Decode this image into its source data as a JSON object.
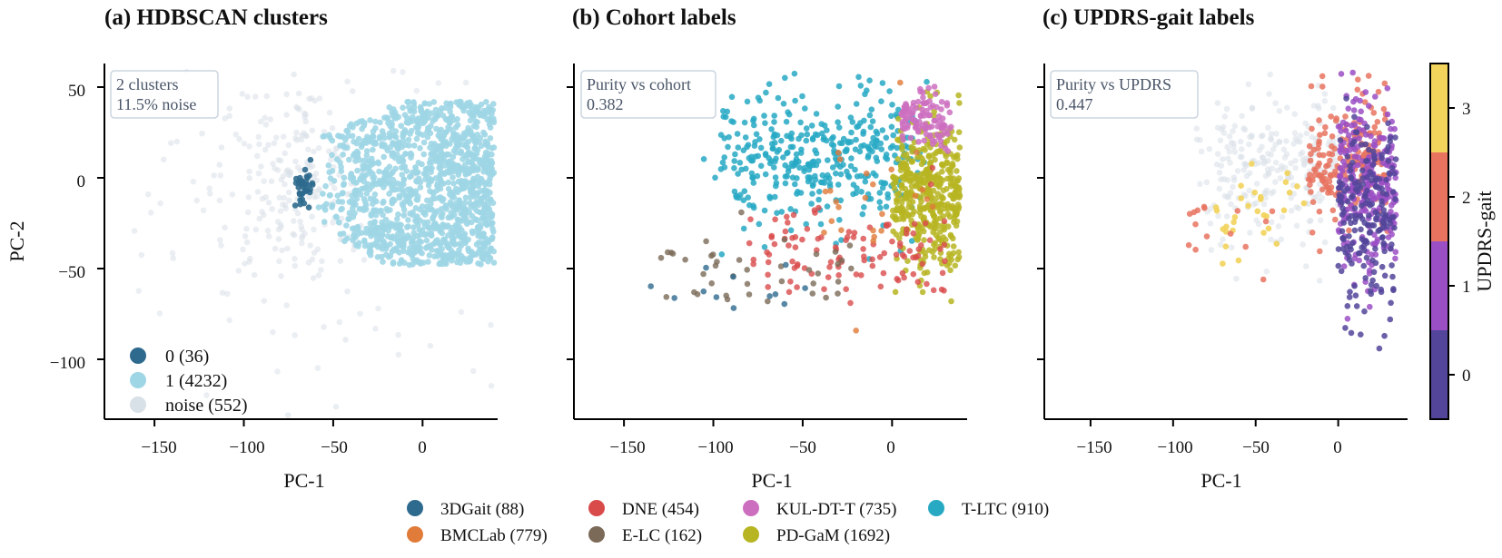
{
  "panels": [
    {
      "title": "(a) HDBSCAN clusters",
      "xlabel": "PC-1",
      "ylabel": "PC-2",
      "info": [
        "2 clusters",
        "11.5% noise"
      ]
    },
    {
      "title": "(b) Cohort labels",
      "xlabel": "PC-1",
      "ylabel": "",
      "info": [
        "Purity vs cohort",
        "0.382"
      ]
    },
    {
      "title": "(c) UPDRS-gait labels",
      "xlabel": "PC-1",
      "ylabel": "",
      "info": [
        "Purity vs UPDRS",
        "0.447"
      ]
    }
  ],
  "legend_a": [
    {
      "label": "0 (36)",
      "color": "#2e6a8e"
    },
    {
      "label": "1 (4232)",
      "color": "#9fd6e6"
    },
    {
      "label": "noise (552)",
      "color": "#d8e0e8"
    }
  ],
  "cohort_legend": [
    {
      "label": "3DGait (88)",
      "color": "#2e6a8e"
    },
    {
      "label": "BMCLab (779)",
      "color": "#e07b39"
    },
    {
      "label": "DNE (454)",
      "color": "#d94b4b"
    },
    {
      "label": "E-LC (162)",
      "color": "#7b6a58"
    },
    {
      "label": "KUL-DT-T (735)",
      "color": "#cc6fbf"
    },
    {
      "label": "PD-GaM (1692)",
      "color": "#b7b522"
    },
    {
      "label": "T-LTC (910)",
      "color": "#27a9c4"
    }
  ],
  "colorbar": {
    "label": "UPDRS-gait",
    "levels": [
      {
        "value": "0",
        "color": "#52459a"
      },
      {
        "value": "1",
        "color": "#9b4fc4"
      },
      {
        "value": "2",
        "color": "#e8735f"
      },
      {
        "value": "3",
        "color": "#f2d35b"
      }
    ]
  },
  "chart_data": [
    {
      "type": "scatter",
      "title": "(a) HDBSCAN clusters",
      "xlabel": "PC-1",
      "ylabel": "PC-2",
      "xlim": [
        -178,
        42
      ],
      "ylim": [
        -133,
        63
      ],
      "xticks": [
        "-150",
        "-100",
        "-50",
        "0"
      ],
      "yticks": [
        "50",
        "0",
        "-50",
        "-100"
      ],
      "legend_position": "lower-left",
      "series": [
        {
          "name": "0 (36)",
          "color": "#2e6a8e",
          "count": 36,
          "x_range": [
            -72,
            -60
          ],
          "y_range": [
            -15,
            8
          ]
        },
        {
          "name": "1 (4232)",
          "color": "#9fd6e6",
          "count": 4232,
          "x_range": [
            -62,
            40
          ],
          "y_range": [
            -50,
            45
          ]
        },
        {
          "name": "noise (552)",
          "color": "#d8e0e8",
          "count": 552,
          "x_range": [
            -178,
            40
          ],
          "y_range": [
            -130,
            60
          ]
        }
      ]
    },
    {
      "type": "scatter",
      "title": "(b) Cohort labels",
      "xlabel": "PC-1",
      "xlim": [
        -178,
        42
      ],
      "ylim": [
        -133,
        63
      ],
      "xticks": [
        "-150",
        "-100",
        "-50",
        "0"
      ],
      "series": [
        {
          "name": "3DGait (88)",
          "count": 88
        },
        {
          "name": "BMCLab (779)",
          "count": 779
        },
        {
          "name": "DNE (454)",
          "count": 454
        },
        {
          "name": "E-LC (162)",
          "count": 162
        },
        {
          "name": "KUL-DT-T (735)",
          "count": 735
        },
        {
          "name": "PD-GaM (1692)",
          "count": 1692
        },
        {
          "name": "T-LTC (910)",
          "count": 910
        }
      ]
    },
    {
      "type": "scatter",
      "title": "(c) UPDRS-gait labels",
      "xlabel": "PC-1",
      "xlim": [
        -178,
        42
      ],
      "ylim": [
        -133,
        63
      ],
      "xticks": [
        "-150",
        "-100",
        "-50",
        "0"
      ],
      "colorbar_label": "UPDRS-gait",
      "colorbar_ticks": [
        "0",
        "1",
        "2",
        "3"
      ],
      "series": [
        {
          "name": "0",
          "color": "#52459a"
        },
        {
          "name": "1",
          "color": "#9b4fc4"
        },
        {
          "name": "2",
          "color": "#e8735f"
        },
        {
          "name": "3",
          "color": "#f2d35b"
        }
      ]
    }
  ]
}
